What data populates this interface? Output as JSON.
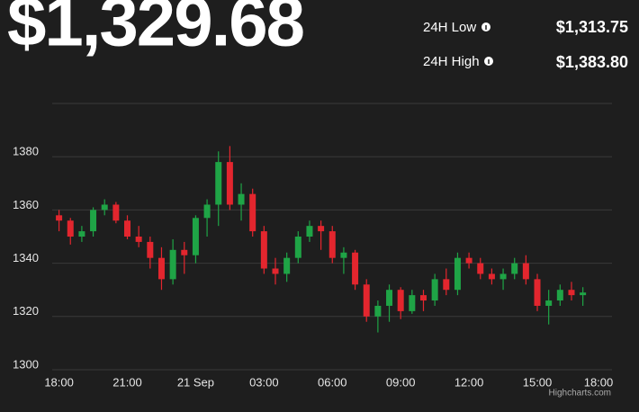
{
  "header": {
    "price": "$1,329.68",
    "stats": [
      {
        "label": "24H Low",
        "value": "$1,313.75"
      },
      {
        "label": "24H High",
        "value": "$1,383.80"
      }
    ]
  },
  "chart_data": {
    "type": "candlestick",
    "x": [
      0,
      0.5,
      1,
      1.5,
      2,
      2.5,
      3,
      3.5,
      4,
      4.5,
      5,
      5.5,
      6,
      6.5,
      7,
      7.5,
      8,
      8.5,
      9,
      9.5,
      10,
      10.5,
      11,
      11.5,
      12,
      12.5,
      13,
      13.5,
      14,
      14.5,
      15,
      15.5,
      16,
      16.5,
      17,
      17.5,
      18,
      18.5,
      19,
      19.5,
      20,
      20.5,
      21,
      21.5,
      22,
      22.5,
      23
    ],
    "open": [
      1358,
      1356,
      1350,
      1352,
      1360,
      1362,
      1356,
      1350,
      1348,
      1342,
      1334,
      1345,
      1343,
      1357,
      1362,
      1378,
      1362,
      1366,
      1352,
      1338,
      1336,
      1342,
      1350,
      1354,
      1352,
      1342,
      1344,
      1332,
      1320,
      1324,
      1330,
      1322,
      1328,
      1326,
      1334,
      1330,
      1342,
      1340,
      1336,
      1334,
      1336,
      1340,
      1334,
      1324,
      1326,
      1330,
      1328
    ],
    "high": [
      1360,
      1357,
      1354,
      1361,
      1364,
      1363,
      1358,
      1354,
      1350,
      1346,
      1349,
      1348,
      1358,
      1364,
      1382,
      1384,
      1370,
      1368,
      1354,
      1342,
      1344,
      1352,
      1356,
      1356,
      1354,
      1346,
      1345,
      1334,
      1326,
      1332,
      1331,
      1330,
      1330,
      1336,
      1338,
      1344,
      1344,
      1342,
      1338,
      1338,
      1342,
      1343,
      1336,
      1330,
      1332,
      1333,
      1331
    ],
    "low": [
      1352,
      1347,
      1348,
      1350,
      1358,
      1355,
      1349,
      1346,
      1338,
      1330,
      1332,
      1336,
      1340,
      1350,
      1354,
      1360,
      1356,
      1350,
      1336,
      1332,
      1333,
      1340,
      1348,
      1345,
      1340,
      1336,
      1330,
      1318,
      1314,
      1318,
      1319,
      1321,
      1322,
      1324,
      1328,
      1328,
      1338,
      1334,
      1332,
      1330,
      1334,
      1332,
      1322,
      1317,
      1324,
      1326,
      1324
    ],
    "close": [
      1356,
      1350,
      1352,
      1360,
      1362,
      1356,
      1350,
      1348,
      1342,
      1334,
      1345,
      1343,
      1357,
      1362,
      1378,
      1362,
      1366,
      1352,
      1338,
      1336,
      1342,
      1350,
      1354,
      1352,
      1342,
      1344,
      1332,
      1320,
      1324,
      1330,
      1322,
      1328,
      1326,
      1334,
      1330,
      1342,
      1340,
      1336,
      1334,
      1336,
      1340,
      1334,
      1324,
      1326,
      1330,
      1328,
      1329
    ],
    "xlim": [
      -0.3,
      24.2
    ],
    "xticks": [
      {
        "value": 0,
        "label": "18:00"
      },
      {
        "value": 3,
        "label": "21:00"
      },
      {
        "value": 6,
        "label": "21 Sep"
      },
      {
        "value": 9,
        "label": "03:00"
      },
      {
        "value": 12,
        "label": "06:00"
      },
      {
        "value": 15,
        "label": "09:00"
      },
      {
        "value": 18,
        "label": "12:00"
      },
      {
        "value": 21,
        "label": "15:00"
      },
      {
        "value": 24,
        "label": "18:00"
      }
    ],
    "ylim": [
      1300,
      1400
    ],
    "yticks": [
      1300,
      1320,
      1340,
      1360,
      1380
    ],
    "grid": true,
    "up_color": "#1fa446",
    "down_color": "#e3262e",
    "credit": "Highcharts.com"
  }
}
